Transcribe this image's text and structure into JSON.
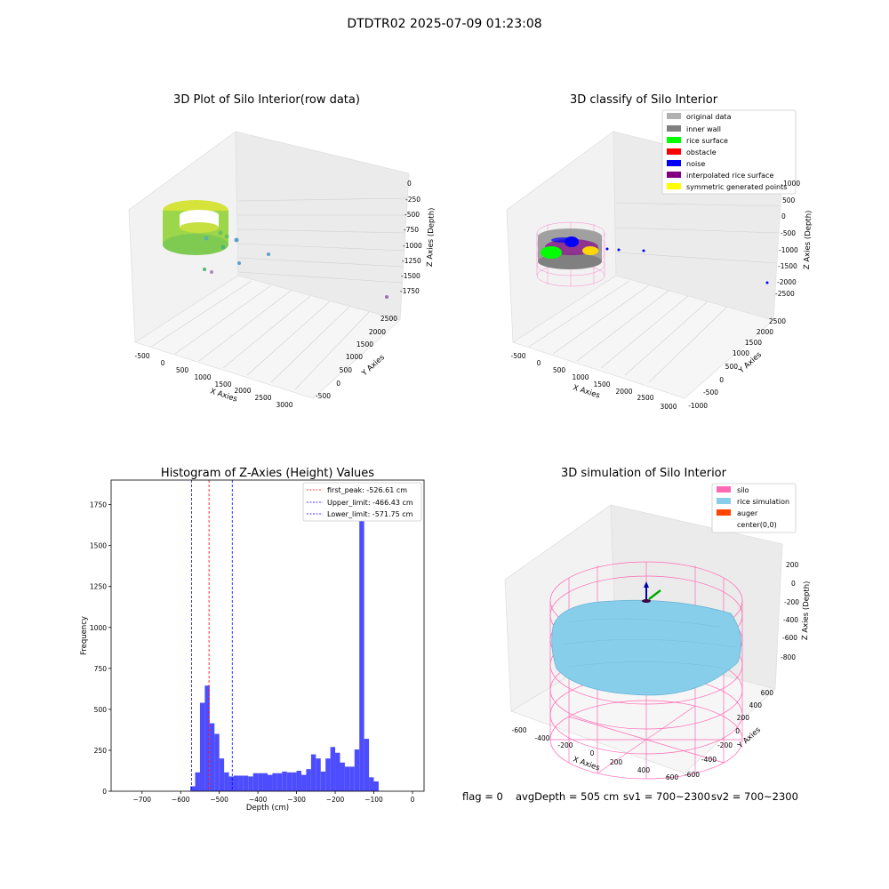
{
  "figure": {
    "suptitle": "DTDTR02 2025-07-09 01:23:08",
    "status": {
      "flag": "flag = 0",
      "avgDepth": "avgDepth = 505 cm",
      "sv1": "sv1 = 700~2300",
      "sv2": "sv2 = 700~2300"
    }
  },
  "chart_data": [
    {
      "type": "scatter",
      "projection": "3d",
      "title": "3D Plot of Silo Interior(row data)",
      "xlabel": "X Axies",
      "ylabel": "Y Axies",
      "zlabel": "Z Axies (Depth)",
      "x_ticks": [
        "-500",
        "0",
        "500",
        "1000",
        "1500",
        "2000",
        "2500",
        "3000"
      ],
      "y_ticks": [
        "-500",
        "0",
        "500",
        "1000",
        "1500",
        "2000",
        "2500"
      ],
      "z_ticks": [
        "0",
        "-250",
        "-500",
        "-750",
        "-1000",
        "-1250",
        "-1500",
        "-1750"
      ],
      "colormap": "viridis",
      "colors": {
        "ring": "#8fd44a",
        "ring_top": "#d9e23a",
        "scatter": "#5aa0c8",
        "outlier": "#9a6fb0"
      },
      "grid": true
    },
    {
      "type": "scatter",
      "projection": "3d",
      "title": "3D classify of Silo Interior",
      "xlabel": "X Axies",
      "ylabel": "Y Axies",
      "zlabel": "Z Axies (Depth)",
      "x_ticks": [
        "-500",
        "0",
        "500",
        "1000",
        "1500",
        "2000",
        "2500",
        "3000"
      ],
      "y_ticks": [
        "-1000",
        "-500",
        "0",
        "500",
        "1000",
        "1500",
        "2000",
        "2500"
      ],
      "z_ticks": [
        "1000",
        "500",
        "0",
        "-500",
        "-1000",
        "-1500",
        "-2000",
        "-2500"
      ],
      "legend_position": "top-right",
      "legend": [
        {
          "label": "original data",
          "color": "#b0b0b0"
        },
        {
          "label": "inner wall",
          "color": "#808080"
        },
        {
          "label": "rice surface",
          "color": "#00ff00"
        },
        {
          "label": "obstacle",
          "color": "#ff0000"
        },
        {
          "label": "noise",
          "color": "#0000ff"
        },
        {
          "label": "interpolated rice surface",
          "color": "#800080"
        },
        {
          "label": "symmetric generated points",
          "color": "#ffff00"
        }
      ],
      "grid": true
    },
    {
      "type": "bar",
      "title": "Histogram of Z-Axies (Height) Values",
      "xlabel": "Depth (cm)",
      "ylabel": "Frequency",
      "xlim": [
        -780,
        30
      ],
      "ylim": [
        0,
        1900
      ],
      "x_ticks": [
        -700,
        -600,
        -500,
        -400,
        -300,
        -200,
        -100,
        0
      ],
      "y_ticks": [
        0,
        250,
        500,
        750,
        1000,
        1250,
        1500,
        1750
      ],
      "bar_color": "#4d4dff",
      "bin_width": 12.5,
      "bins": [
        {
          "x": -575,
          "count": 30
        },
        {
          "x": -562.5,
          "count": 115
        },
        {
          "x": -550,
          "count": 540
        },
        {
          "x": -537.5,
          "count": 645
        },
        {
          "x": -525,
          "count": 415
        },
        {
          "x": -512.5,
          "count": 350
        },
        {
          "x": -500,
          "count": 200
        },
        {
          "x": -487.5,
          "count": 115
        },
        {
          "x": -475,
          "count": 90
        },
        {
          "x": -462.5,
          "count": 95
        },
        {
          "x": -450,
          "count": 95
        },
        {
          "x": -437.5,
          "count": 95
        },
        {
          "x": -425,
          "count": 90
        },
        {
          "x": -412.5,
          "count": 110
        },
        {
          "x": -400,
          "count": 110
        },
        {
          "x": -387.5,
          "count": 110
        },
        {
          "x": -375,
          "count": 100
        },
        {
          "x": -362.5,
          "count": 110
        },
        {
          "x": -350,
          "count": 110
        },
        {
          "x": -337.5,
          "count": 120
        },
        {
          "x": -325,
          "count": 115
        },
        {
          "x": -312.5,
          "count": 115
        },
        {
          "x": -300,
          "count": 125
        },
        {
          "x": -287.5,
          "count": 100
        },
        {
          "x": -275,
          "count": 135
        },
        {
          "x": -262.5,
          "count": 225
        },
        {
          "x": -250,
          "count": 200
        },
        {
          "x": -237.5,
          "count": 120
        },
        {
          "x": -225,
          "count": 200
        },
        {
          "x": -212.5,
          "count": 270
        },
        {
          "x": -200,
          "count": 235
        },
        {
          "x": -187.5,
          "count": 175
        },
        {
          "x": -175,
          "count": 150
        },
        {
          "x": -162.5,
          "count": 150
        },
        {
          "x": -150,
          "count": 255
        },
        {
          "x": -137.5,
          "count": 1800
        },
        {
          "x": -125,
          "count": 320
        },
        {
          "x": -112.5,
          "count": 85
        },
        {
          "x": -100,
          "count": 60
        }
      ],
      "reference_lines": [
        {
          "label": "first_peak: -526.61 cm",
          "x": -526.61,
          "color": "#ff0000"
        },
        {
          "label": "Upper_limit: -466.43 cm",
          "x": -466.43,
          "color": "#0000ff"
        },
        {
          "label": "Lower_limit: -571.75 cm",
          "x": -571.75,
          "color": "#0000ff"
        }
      ],
      "legend_position": "top-right"
    },
    {
      "type": "scatter",
      "projection": "3d",
      "title": "3D simulation of Silo Interior",
      "xlabel": "X Axies",
      "ylabel": "Y Axies",
      "zlabel": "Z Axies (Depth)",
      "x_ticks": [
        "-600",
        "-400",
        "-200",
        "0",
        "200",
        "400",
        "600"
      ],
      "y_ticks": [
        "-600",
        "-400",
        "-200",
        "0",
        "200",
        "400",
        "600"
      ],
      "z_ticks": [
        "200",
        "0",
        "-200",
        "-400",
        "-600",
        "-800"
      ],
      "legend_position": "top-right",
      "legend": [
        {
          "label": "silo",
          "color": "#ff69b4"
        },
        {
          "label": "rice simulation",
          "color": "#87ceeb"
        },
        {
          "label": "auger",
          "color": "#ff4500"
        },
        {
          "label": "center(0,0)",
          "color": "#ffffff"
        }
      ],
      "grid": true
    }
  ]
}
